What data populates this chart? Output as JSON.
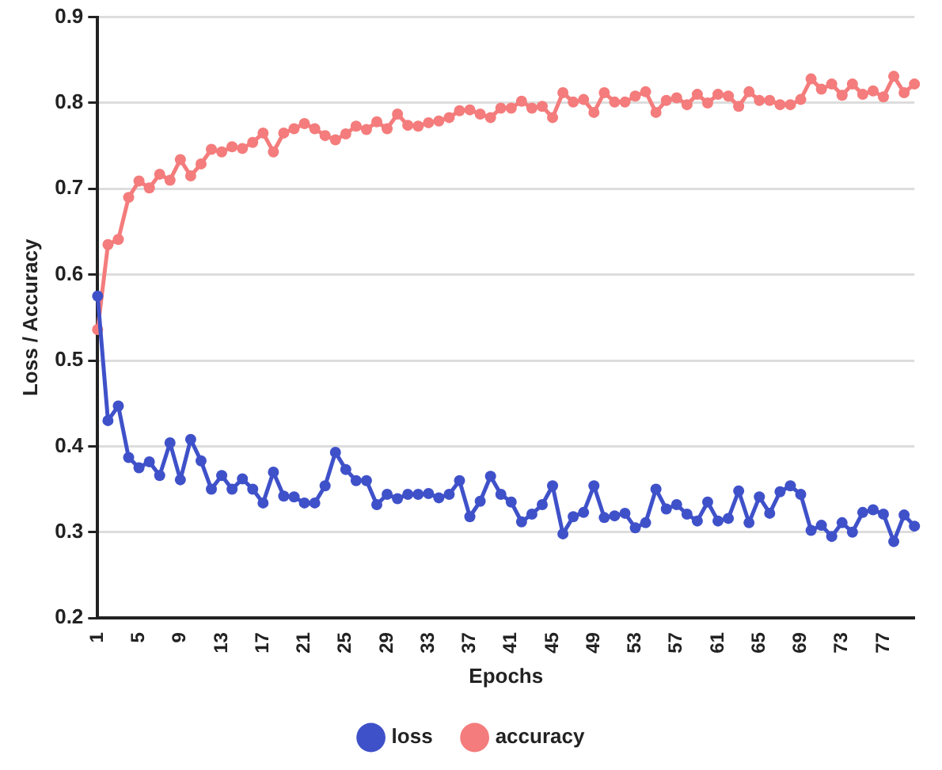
{
  "chart_data": {
    "type": "line",
    "xlabel": "Epochs",
    "ylabel": "Loss / Accuracy",
    "categories": [
      "1",
      null,
      null,
      null,
      "5",
      null,
      null,
      null,
      "9",
      null,
      null,
      null,
      "13",
      null,
      null,
      null,
      "17",
      null,
      null,
      null,
      "21",
      null,
      null,
      null,
      "25",
      null,
      null,
      null,
      "29",
      null,
      null,
      null,
      "33",
      null,
      null,
      null,
      "37",
      null,
      null,
      null,
      "41",
      null,
      null,
      null,
      "45",
      null,
      null,
      null,
      "49",
      null,
      null,
      null,
      "53",
      null,
      null,
      null,
      "57",
      null,
      null,
      null,
      "61",
      null,
      null,
      null,
      "65",
      null,
      null,
      null,
      "69",
      null,
      null,
      null,
      "73",
      null,
      null,
      null,
      "77",
      null,
      null,
      null
    ],
    "series": [
      {
        "name": "loss",
        "color": "#3f51c9",
        "values": [
          0.575,
          0.43,
          0.447,
          0.387,
          0.375,
          0.382,
          0.366,
          0.404,
          0.361,
          0.408,
          0.383,
          0.35,
          0.366,
          0.35,
          0.362,
          0.35,
          0.334,
          0.37,
          0.342,
          0.341,
          0.334,
          0.334,
          0.354,
          0.393,
          0.373,
          0.36,
          0.36,
          0.332,
          0.344,
          0.339,
          0.344,
          0.344,
          0.345,
          0.34,
          0.344,
          0.36,
          0.318,
          0.336,
          0.365,
          0.344,
          0.335,
          0.312,
          0.321,
          0.332,
          0.354,
          0.298,
          0.318,
          0.323,
          0.354,
          0.317,
          0.319,
          0.322,
          0.305,
          0.311,
          0.35,
          0.327,
          0.332,
          0.321,
          0.313,
          0.335,
          0.313,
          0.316,
          0.348,
          0.311,
          0.341,
          0.322,
          0.347,
          0.354,
          0.344,
          0.302,
          0.308,
          0.295,
          0.311,
          0.3,
          0.323,
          0.326,
          0.321,
          0.289,
          0.32,
          0.307
        ]
      },
      {
        "name": "accuracy",
        "color": "#f47c7c",
        "values": [
          0.536,
          0.635,
          0.641,
          0.69,
          0.709,
          0.701,
          0.717,
          0.71,
          0.734,
          0.715,
          0.729,
          0.746,
          0.743,
          0.749,
          0.747,
          0.754,
          0.765,
          0.743,
          0.765,
          0.77,
          0.776,
          0.77,
          0.762,
          0.757,
          0.764,
          0.773,
          0.769,
          0.778,
          0.77,
          0.787,
          0.774,
          0.773,
          0.777,
          0.779,
          0.783,
          0.791,
          0.792,
          0.787,
          0.783,
          0.794,
          0.794,
          0.802,
          0.794,
          0.796,
          0.783,
          0.812,
          0.801,
          0.804,
          0.789,
          0.812,
          0.801,
          0.801,
          0.808,
          0.813,
          0.789,
          0.803,
          0.806,
          0.798,
          0.81,
          0.8,
          0.81,
          0.808,
          0.796,
          0.813,
          0.803,
          0.803,
          0.798,
          0.798,
          0.804,
          0.828,
          0.816,
          0.822,
          0.809,
          0.822,
          0.81,
          0.814,
          0.807,
          0.831,
          0.812,
          0.822
        ]
      }
    ],
    "ylim": [
      0.2,
      0.9
    ],
    "yticks": [
      0.2,
      0.3,
      0.4,
      0.5,
      0.6,
      0.7,
      0.8,
      0.9
    ],
    "grid": "y",
    "legend": "bottom",
    "marker": "circle",
    "line_style": "solid"
  }
}
